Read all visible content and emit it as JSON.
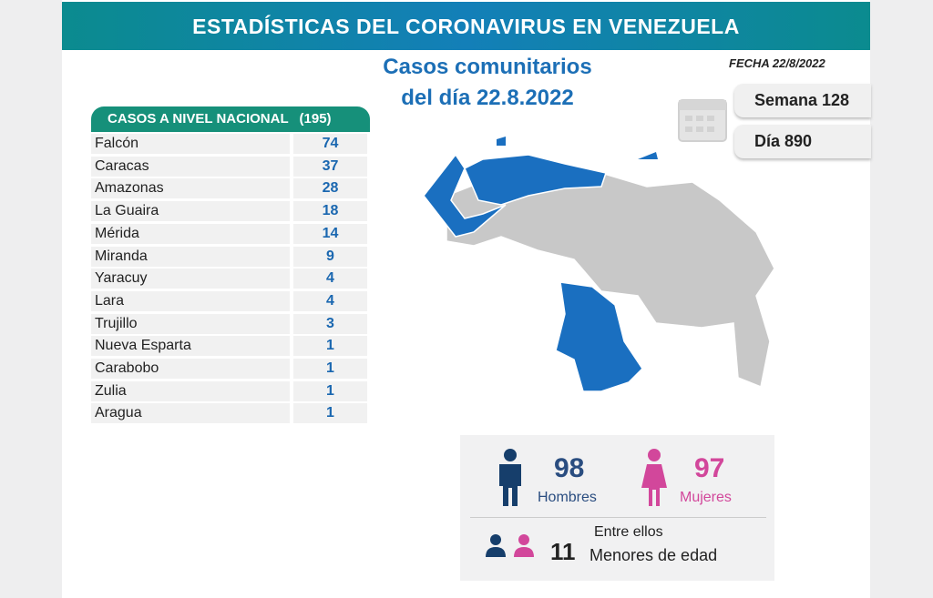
{
  "header": {
    "title": "ESTADÍSTICAS DEL CORONAVIRUS EN VENEZUELA"
  },
  "subtitle": {
    "line1": "Casos comunitarios",
    "line2": "del día 22.8.2022"
  },
  "fecha": "FECHA 22/8/2022",
  "table": {
    "title": "CASOS A NIVEL NACIONAL",
    "total": "(195)",
    "rows": [
      [
        "Falcón",
        "74"
      ],
      [
        "Caracas",
        "37"
      ],
      [
        "Amazonas",
        "28"
      ],
      [
        "La Guaira",
        "18"
      ],
      [
        "Mérida",
        "14"
      ],
      [
        "Miranda",
        "9"
      ],
      [
        "Yaracuy",
        "4"
      ],
      [
        "Lara",
        "4"
      ],
      [
        "Trujillo",
        "3"
      ],
      [
        "Nueva Esparta",
        "1"
      ],
      [
        "Carabobo",
        "1"
      ],
      [
        "Zulia",
        "1"
      ],
      [
        "Aragua",
        "1"
      ]
    ]
  },
  "semana": "Semana 128",
  "dia": "Día 890",
  "stats": {
    "hombres": {
      "value": "98",
      "label": "Hombres"
    },
    "mujeres": {
      "value": "97",
      "label": "Mujeres"
    },
    "menores": {
      "intro": "Entre ellos",
      "value": "11",
      "label": "Menores de edad"
    }
  }
}
